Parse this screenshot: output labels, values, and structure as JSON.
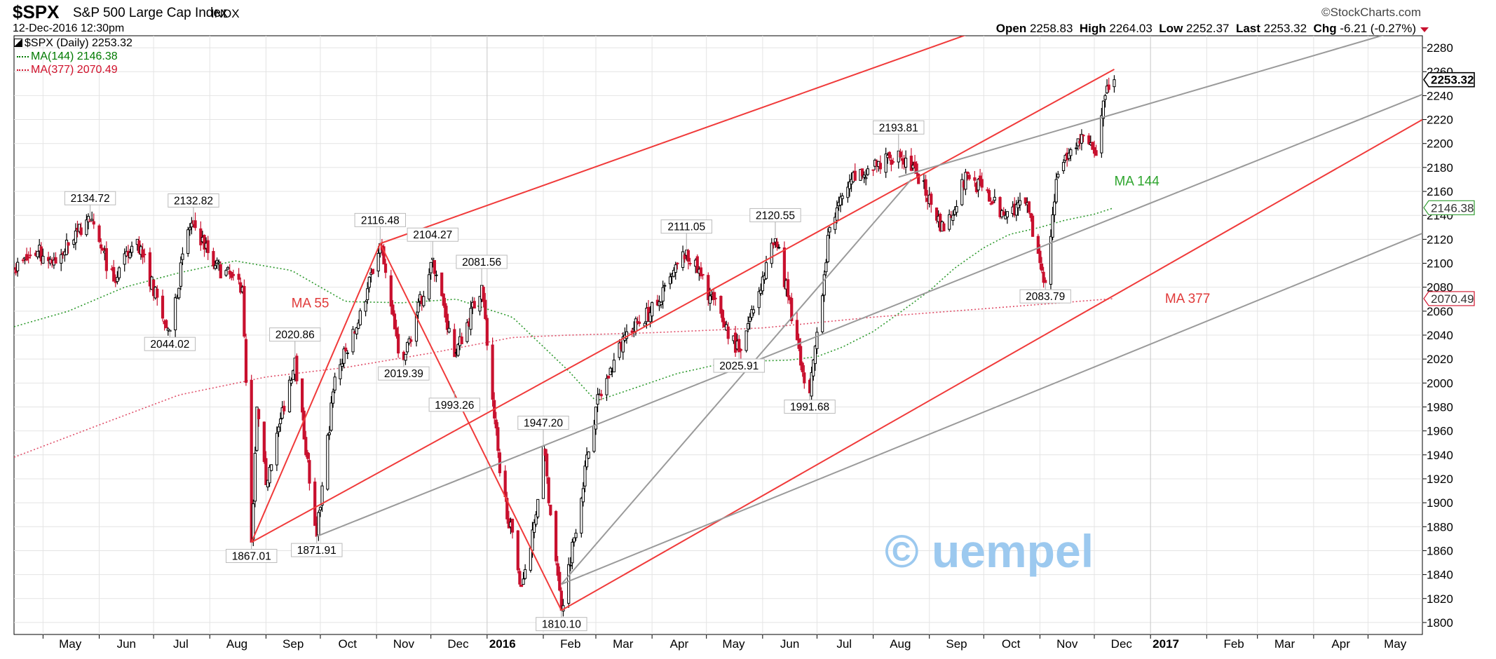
{
  "header": {
    "symbol": "$SPX",
    "name": "S&P 500 Large Cap Index",
    "exchange": "INDX",
    "datetime": "12-Dec-2016 12:30pm",
    "brand": "©StockCharts.com",
    "open_label": "Open",
    "open": "2258.83",
    "high_label": "High",
    "high": "2264.03",
    "low_label": "Low",
    "low": "2252.37",
    "last_label": "Last",
    "last": "2253.32",
    "chg_label": "Chg",
    "chg": "-6.21 (-0.27%)"
  },
  "legend": {
    "main": "$SPX (Daily) 2253.32",
    "ma144": "MA(144) 2146.38",
    "ma377": "MA(377) 2070.49"
  },
  "watermark": "© uempel",
  "colors": {
    "up": "#000000",
    "down": "#c8102e",
    "ma144": "#2e9a2e",
    "ma377": "#e0506a",
    "channel_red": "#f03a3a",
    "channel_gray": "#9a9a9a",
    "ma144_text": "#2ea52e",
    "ma377_text": "#e03a3a",
    "axis": "#000000",
    "grid": "#e4e4e4"
  },
  "chart_data": {
    "type": "candlestick",
    "title": "$SPX (Daily)",
    "y_axis": {
      "side": "right",
      "min": 1790,
      "max": 2290,
      "ticks": [
        1800,
        1820,
        1840,
        1860,
        1880,
        1900,
        1920,
        1940,
        1960,
        1980,
        2000,
        2020,
        2040,
        2060,
        2080,
        2100,
        2120,
        2140,
        2160,
        2180,
        2200,
        2220,
        2240,
        2260,
        2280
      ]
    },
    "x_axis": {
      "start": "2015-04-15",
      "end": "2017-05-31",
      "labels": [
        {
          "date": "2015-05-01",
          "text": "May"
        },
        {
          "date": "2015-06-01",
          "text": "Jun"
        },
        {
          "date": "2015-07-01",
          "text": "Jul"
        },
        {
          "date": "2015-08-01",
          "text": "Aug"
        },
        {
          "date": "2015-09-01",
          "text": "Sep"
        },
        {
          "date": "2015-10-01",
          "text": "Oct"
        },
        {
          "date": "2015-11-01",
          "text": "Nov"
        },
        {
          "date": "2015-12-01",
          "text": "Dec"
        },
        {
          "date": "2016-01-01",
          "text": "2016",
          "bold": true
        },
        {
          "date": "2016-02-01",
          "text": "Feb"
        },
        {
          "date": "2016-03-01",
          "text": "Mar"
        },
        {
          "date": "2016-04-01",
          "text": "Apr"
        },
        {
          "date": "2016-05-01",
          "text": "May"
        },
        {
          "date": "2016-06-01",
          "text": "Jun"
        },
        {
          "date": "2016-07-01",
          "text": "Jul"
        },
        {
          "date": "2016-08-01",
          "text": "Aug"
        },
        {
          "date": "2016-09-01",
          "text": "Sep"
        },
        {
          "date": "2016-10-01",
          "text": "Oct"
        },
        {
          "date": "2016-11-01",
          "text": "Nov"
        },
        {
          "date": "2016-12-01",
          "text": "Dec"
        },
        {
          "date": "2017-01-01",
          "text": "2017",
          "bold": true
        },
        {
          "date": "2017-02-01",
          "text": "Feb"
        },
        {
          "date": "2017-03-01",
          "text": "Mar"
        },
        {
          "date": "2017-04-01",
          "text": "Apr"
        },
        {
          "date": "2017-05-01",
          "text": "May"
        }
      ]
    },
    "price_anchors": [
      [
        "2015-04-15",
        2095
      ],
      [
        "2015-04-28",
        2110
      ],
      [
        "2015-05-08",
        2100
      ],
      [
        "2015-05-20",
        2128
      ],
      [
        "2015-05-27",
        2134.72
      ],
      [
        "2015-06-09",
        2085
      ],
      [
        "2015-06-22",
        2120
      ],
      [
        "2015-07-08",
        2046
      ],
      [
        "2015-07-10",
        2044.02
      ],
      [
        "2015-07-20",
        2128
      ],
      [
        "2015-07-23",
        2132.82
      ],
      [
        "2015-08-04",
        2098
      ],
      [
        "2015-08-13",
        2088
      ],
      [
        "2015-08-19",
        2080
      ],
      [
        "2015-08-24",
        1867.01
      ],
      [
        "2015-08-27",
        1980
      ],
      [
        "2015-09-01",
        1915
      ],
      [
        "2015-09-09",
        1970
      ],
      [
        "2015-09-17",
        2020.86
      ],
      [
        "2015-09-28",
        1881
      ],
      [
        "2015-09-29",
        1871.91
      ],
      [
        "2015-10-09",
        2005
      ],
      [
        "2015-10-22",
        2050
      ],
      [
        "2015-11-03",
        2116.48
      ],
      [
        "2015-11-13",
        2025
      ],
      [
        "2015-11-16",
        2019.39
      ],
      [
        "2015-12-02",
        2104.27
      ],
      [
        "2015-12-14",
        2022
      ],
      [
        "2015-12-29",
        2081.56
      ],
      [
        "2016-01-08",
        1925
      ],
      [
        "2016-01-20",
        1830
      ],
      [
        "2016-01-28",
        1890
      ],
      [
        "2016-02-01",
        1947.2
      ],
      [
        "2016-02-11",
        1810.1
      ],
      [
        "2016-03-01",
        1980
      ],
      [
        "2016-03-17",
        2040
      ],
      [
        "2016-04-04",
        2065
      ],
      [
        "2016-04-20",
        2111.05
      ],
      [
        "2016-05-19",
        2025.91
      ],
      [
        "2016-06-08",
        2120.55
      ],
      [
        "2016-06-15",
        2072
      ],
      [
        "2016-06-24",
        2000
      ],
      [
        "2016-06-27",
        1991.68
      ],
      [
        "2016-07-08",
        2130
      ],
      [
        "2016-07-20",
        2170
      ],
      [
        "2016-08-01",
        2178
      ],
      [
        "2016-08-15",
        2193.81
      ],
      [
        "2016-08-25",
        2175
      ],
      [
        "2016-09-09",
        2127
      ],
      [
        "2016-09-22",
        2175
      ],
      [
        "2016-10-12",
        2140
      ],
      [
        "2016-10-24",
        2150
      ],
      [
        "2016-11-04",
        2083.79
      ],
      [
        "2016-11-10",
        2170
      ],
      [
        "2016-11-22",
        2204
      ],
      [
        "2016-11-30",
        2195
      ],
      [
        "2016-12-02",
        2190
      ],
      [
        "2016-12-07",
        2240
      ],
      [
        "2016-12-12",
        2253.32
      ]
    ],
    "ma144": [
      [
        "2015-04-15",
        2047
      ],
      [
        "2015-05-15",
        2060
      ],
      [
        "2015-06-15",
        2080
      ],
      [
        "2015-07-15",
        2092
      ],
      [
        "2015-08-15",
        2102
      ],
      [
        "2015-09-15",
        2094
      ],
      [
        "2015-10-15",
        2068
      ],
      [
        "2015-11-15",
        2067
      ],
      [
        "2015-12-15",
        2070
      ],
      [
        "2016-01-15",
        2055
      ],
      [
        "2016-02-15",
        2010
      ],
      [
        "2016-03-01",
        1985
      ],
      [
        "2016-03-15",
        1992
      ],
      [
        "2016-04-15",
        2008
      ],
      [
        "2016-05-15",
        2018
      ],
      [
        "2016-06-15",
        2019
      ],
      [
        "2016-07-01",
        2022
      ],
      [
        "2016-07-15",
        2030
      ],
      [
        "2016-08-01",
        2043
      ],
      [
        "2016-08-15",
        2058
      ],
      [
        "2016-09-01",
        2077
      ],
      [
        "2016-09-15",
        2096
      ],
      [
        "2016-10-01",
        2113
      ],
      [
        "2016-10-15",
        2124
      ],
      [
        "2016-11-01",
        2130
      ],
      [
        "2016-11-15",
        2136
      ],
      [
        "2016-12-01",
        2141
      ],
      [
        "2016-12-12",
        2146.38
      ]
    ],
    "ma377": [
      [
        "2015-04-15",
        1938
      ],
      [
        "2015-06-01",
        1965
      ],
      [
        "2015-07-15",
        1990
      ],
      [
        "2015-09-01",
        2005
      ],
      [
        "2015-10-15",
        2013
      ],
      [
        "2015-12-01",
        2025
      ],
      [
        "2016-01-15",
        2038
      ],
      [
        "2016-02-15",
        2040
      ],
      [
        "2016-04-01",
        2042
      ],
      [
        "2016-06-01",
        2046
      ],
      [
        "2016-08-01",
        2055
      ],
      [
        "2016-10-01",
        2062
      ],
      [
        "2016-12-12",
        2070.49
      ]
    ],
    "channels": [
      {
        "color": "red",
        "points": [
          [
            "2015-08-24",
            1867
          ],
          [
            "2015-11-03",
            2116.48
          ]
        ]
      },
      {
        "color": "red",
        "points": [
          [
            "2015-11-03",
            2116.48
          ],
          [
            "2016-12-31",
            2345
          ]
        ]
      },
      {
        "color": "red",
        "points": [
          [
            "2015-08-24",
            1867
          ],
          [
            "2016-12-12",
            2262
          ]
        ]
      },
      {
        "color": "red",
        "points": [
          [
            "2016-02-11",
            1810.1
          ],
          [
            "2017-05-31",
            2220
          ]
        ]
      },
      {
        "color": "red",
        "points": [
          [
            "2015-11-03",
            2116.48
          ],
          [
            "2016-02-11",
            1810.1
          ]
        ]
      },
      {
        "color": "gray",
        "points": [
          [
            "2015-09-29",
            1871.91
          ],
          [
            "2017-05-31",
            2241
          ]
        ]
      },
      {
        "color": "gray",
        "points": [
          [
            "2016-02-11",
            1832
          ],
          [
            "2017-05-31",
            2125
          ]
        ]
      },
      {
        "color": "gray",
        "points": [
          [
            "2016-02-11",
            1832
          ],
          [
            "2016-08-22",
            2170
          ]
        ]
      },
      {
        "color": "gray",
        "points": [
          [
            "2016-08-15",
            2172
          ],
          [
            "2017-05-31",
            2300
          ]
        ]
      }
    ],
    "price_labels": [
      {
        "date": "2015-05-27",
        "value": 2134.72,
        "text": "2134.72",
        "pos": "above"
      },
      {
        "date": "2015-07-23",
        "value": 2132.82,
        "text": "2132.82",
        "pos": "above"
      },
      {
        "date": "2015-07-10",
        "value": 2044.02,
        "text": "2044.02",
        "pos": "below"
      },
      {
        "date": "2015-08-24",
        "value": 1867.01,
        "text": "1867.01",
        "pos": "below"
      },
      {
        "date": "2015-09-17",
        "value": 2020.86,
        "text": "2020.86",
        "pos": "above"
      },
      {
        "date": "2015-09-29",
        "value": 1871.91,
        "text": "1871.91",
        "pos": "below"
      },
      {
        "date": "2015-11-03",
        "value": 2116.48,
        "text": "2116.48",
        "pos": "above"
      },
      {
        "date": "2015-11-16",
        "value": 2019.39,
        "text": "2019.39",
        "pos": "below"
      },
      {
        "date": "2015-12-02",
        "value": 2104.27,
        "text": "2104.27",
        "pos": "above"
      },
      {
        "date": "2015-12-29",
        "value": 2081.56,
        "text": "2081.56",
        "pos": "above"
      },
      {
        "date": "2015-12-14",
        "value": 1993.26,
        "text": "1993.26",
        "pos": "below"
      },
      {
        "date": "2016-02-01",
        "value": 1947.2,
        "text": "1947.20",
        "pos": "above"
      },
      {
        "date": "2016-02-11",
        "value": 1810.1,
        "text": "1810.10",
        "pos": "below"
      },
      {
        "date": "2016-04-20",
        "value": 2111.05,
        "text": "2111.05",
        "pos": "above"
      },
      {
        "date": "2016-05-19",
        "value": 2025.91,
        "text": "2025.91",
        "pos": "below"
      },
      {
        "date": "2016-06-08",
        "value": 2120.55,
        "text": "2120.55",
        "pos": "above"
      },
      {
        "date": "2016-06-27",
        "value": 1991.68,
        "text": "1991.68",
        "pos": "below"
      },
      {
        "date": "2016-08-15",
        "value": 2193.81,
        "text": "2193.81",
        "pos": "above"
      },
      {
        "date": "2016-11-04",
        "value": 2083.79,
        "text": "2083.79",
        "pos": "below"
      }
    ],
    "annotations": [
      {
        "text": "MA 55",
        "date": "2015-09-15",
        "value": 2063,
        "color": "red"
      },
      {
        "text": "MA 144",
        "date": "2016-12-12",
        "value": 2165,
        "color": "green"
      },
      {
        "text": "MA 377",
        "date": "2017-01-09",
        "value": 2067,
        "color": "red"
      }
    ],
    "right_tags": [
      {
        "value": 2253.32,
        "text": "2253.32",
        "style": "last"
      },
      {
        "value": 2146.38,
        "text": "2146.38",
        "style": "ma144"
      },
      {
        "value": 2070.49,
        "text": "2070.49",
        "style": "ma377"
      }
    ]
  }
}
